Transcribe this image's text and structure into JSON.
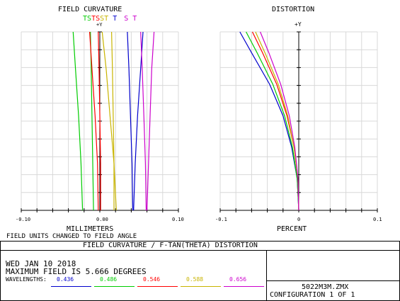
{
  "plots": {
    "left_title": "FIELD CURVATURE",
    "right_title": "DISTORTION",
    "left_yaxis_label": "+Y",
    "right_yaxis_label": "+Y",
    "left_xlabel": "MILLIMETERS",
    "right_xlabel": "PERCENT",
    "left_ticks": [
      "-0.10",
      "0.00",
      "0.10"
    ],
    "right_ticks": [
      "-0.1",
      "0",
      "0.1"
    ],
    "units_note": "FIELD UNITS CHANGED TO FIELD ANGLE",
    "ts_labels": [
      {
        "text": "T",
        "color": "#00cc00"
      },
      {
        "text": "S",
        "color": "#00cc00"
      },
      {
        "text": "T",
        "color": "#ff0000"
      },
      {
        "text": "S",
        "color": "#ff0000"
      },
      {
        "text": "S",
        "color": "#c8b400"
      },
      {
        "text": "T",
        "color": "#c8b400"
      },
      {
        "text": "T",
        "color": "#0000cc"
      },
      {
        "text": "S",
        "color": "#cc00cc"
      },
      {
        "text": "T",
        "color": "#cc00cc"
      }
    ]
  },
  "footer": {
    "banner": "FIELD CURVATURE / F-TAN(THETA) DISTORTION",
    "date": "WED JAN 10 2018",
    "max_field": "MAXIMUM FIELD IS 5.666 DEGREES",
    "wavelengths_label": "WAVELENGTHS:",
    "file": "5022M3M.ZMX",
    "configuration": "CONFIGURATION 1 OF 1"
  },
  "wavelengths": [
    {
      "value": "0.436",
      "color": "#0000cc"
    },
    {
      "value": "0.486",
      "color": "#00cc00"
    },
    {
      "value": "0.546",
      "color": "#ff0000"
    },
    {
      "value": "0.588",
      "color": "#c8b400"
    },
    {
      "value": "0.656",
      "color": "#cc00cc"
    }
  ],
  "chart_data": [
    {
      "type": "line",
      "title": "FIELD CURVATURE",
      "xlabel": "MILLIMETERS",
      "ylabel": "+Y",
      "xlim": [
        -0.1,
        0.1
      ],
      "ylim": [
        0,
        5.666
      ],
      "grid": true,
      "series": [
        {
          "name": "T 0.486",
          "color": "#00cc00",
          "points": [
            [
              -0.022,
              0
            ],
            [
              -0.024,
              1.5
            ],
            [
              -0.027,
              3
            ],
            [
              -0.031,
              4.5
            ],
            [
              -0.034,
              5.666
            ]
          ]
        },
        {
          "name": "S 0.486",
          "color": "#00cc00",
          "points": [
            [
              -0.008,
              0
            ],
            [
              -0.009,
              1.5
            ],
            [
              -0.01,
              3
            ],
            [
              -0.011,
              4.5
            ],
            [
              -0.012,
              5.666
            ]
          ]
        },
        {
          "name": "T 0.546",
          "color": "#ff0000",
          "points": [
            [
              -0.002,
              0
            ],
            [
              -0.003,
              1.5
            ],
            [
              -0.006,
              3
            ],
            [
              -0.01,
              4.5
            ],
            [
              -0.013,
              5.666
            ]
          ]
        },
        {
          "name": "S 0.546",
          "color": "#ff0000",
          "points": [
            [
              0.001,
              0
            ],
            [
              0.001,
              1.5
            ],
            [
              0.0,
              3
            ],
            [
              -0.001,
              4.5
            ],
            [
              -0.002,
              5.666
            ]
          ]
        },
        {
          "name": "S 0.588",
          "color": "#c8b400",
          "points": [
            [
              0.018,
              0
            ],
            [
              0.018,
              1.5
            ],
            [
              0.017,
              3
            ],
            [
              0.016,
              4.5
            ],
            [
              0.015,
              5.666
            ]
          ]
        },
        {
          "name": "T 0.588",
          "color": "#c8b400",
          "points": [
            [
              0.021,
              0
            ],
            [
              0.018,
              1.5
            ],
            [
              0.013,
              3
            ],
            [
              0.008,
              4.5
            ],
            [
              0.003,
              5.666
            ]
          ]
        },
        {
          "name": "S 0.436",
          "color": "#0000cc",
          "points": [
            [
              0.042,
              0
            ],
            [
              0.041,
              1.5
            ],
            [
              0.039,
              3
            ],
            [
              0.037,
              4.5
            ],
            [
              0.035,
              5.666
            ]
          ]
        },
        {
          "name": "T 0.436",
          "color": "#0000cc",
          "points": [
            [
              0.043,
              0
            ],
            [
              0.045,
              1.5
            ],
            [
              0.048,
              3
            ],
            [
              0.052,
              4.5
            ],
            [
              0.055,
              5.666
            ]
          ]
        },
        {
          "name": "S 0.656",
          "color": "#cc00cc",
          "points": [
            [
              0.059,
              0
            ],
            [
              0.058,
              1.5
            ],
            [
              0.056,
              3
            ],
            [
              0.054,
              4.5
            ],
            [
              0.052,
              5.666
            ]
          ]
        },
        {
          "name": "T 0.656",
          "color": "#cc00cc",
          "points": [
            [
              0.06,
              0
            ],
            [
              0.062,
              1.5
            ],
            [
              0.064,
              3
            ],
            [
              0.066,
              4.5
            ],
            [
              0.069,
              5.666
            ]
          ]
        }
      ]
    },
    {
      "type": "line",
      "title": "DISTORTION",
      "xlabel": "PERCENT",
      "ylabel": "+Y",
      "xlim": [
        -0.1,
        0.1
      ],
      "ylim": [
        0,
        5.666
      ],
      "grid": true,
      "series": [
        {
          "name": "0.436",
          "color": "#0000cc",
          "points": [
            [
              0,
              0
            ],
            [
              -0.002,
              1
            ],
            [
              -0.009,
              2
            ],
            [
              -0.02,
              3
            ],
            [
              -0.037,
              4
            ],
            [
              -0.06,
              5
            ],
            [
              -0.075,
              5.666
            ]
          ]
        },
        {
          "name": "0.486",
          "color": "#00cc00",
          "points": [
            [
              0,
              0
            ],
            [
              -0.002,
              1
            ],
            [
              -0.008,
              2
            ],
            [
              -0.018,
              3
            ],
            [
              -0.033,
              4
            ],
            [
              -0.053,
              5
            ],
            [
              -0.067,
              5.666
            ]
          ]
        },
        {
          "name": "0.546",
          "color": "#ff0000",
          "points": [
            [
              0,
              0
            ],
            [
              -0.001,
              1
            ],
            [
              -0.006,
              2
            ],
            [
              -0.015,
              3
            ],
            [
              -0.028,
              4
            ],
            [
              -0.046,
              5
            ],
            [
              -0.059,
              5.666
            ]
          ]
        },
        {
          "name": "0.588",
          "color": "#c8b400",
          "points": [
            [
              0,
              0
            ],
            [
              -0.001,
              1
            ],
            [
              -0.006,
              2
            ],
            [
              -0.014,
              3
            ],
            [
              -0.026,
              4
            ],
            [
              -0.043,
              5
            ],
            [
              -0.055,
              5.666
            ]
          ]
        },
        {
          "name": "0.656",
          "color": "#cc00cc",
          "points": [
            [
              0,
              0
            ],
            [
              -0.001,
              1
            ],
            [
              -0.005,
              2
            ],
            [
              -0.012,
              3
            ],
            [
              -0.023,
              4
            ],
            [
              -0.038,
              5
            ],
            [
              -0.049,
              5.666
            ]
          ]
        }
      ]
    }
  ]
}
